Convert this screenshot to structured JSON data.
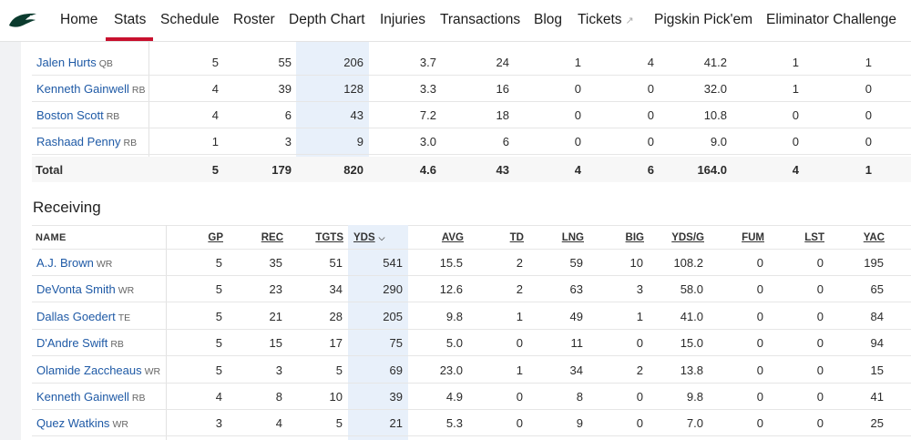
{
  "nav": {
    "items": [
      "Home",
      "Stats",
      "Schedule",
      "Roster",
      "Depth Chart",
      "Injuries",
      "Transactions",
      "Blog",
      "Tickets",
      "Pigskin Pick'em",
      "Eliminator Challenge"
    ],
    "active": "Stats",
    "accent": "#c8102e",
    "tickets_icon": "external-link-icon"
  },
  "rushing": {
    "rows": [
      {
        "name": "Jalen Hurts",
        "pos": "QB",
        "vals": [
          "5",
          "55",
          "206",
          "3.7",
          "24",
          "1",
          "4",
          "41.2",
          "1",
          "1"
        ]
      },
      {
        "name": "Kenneth Gainwell",
        "pos": "RB",
        "vals": [
          "4",
          "39",
          "128",
          "3.3",
          "16",
          "0",
          "0",
          "32.0",
          "1",
          "0"
        ]
      },
      {
        "name": "Boston Scott",
        "pos": "RB",
        "vals": [
          "4",
          "6",
          "43",
          "7.2",
          "18",
          "0",
          "0",
          "10.8",
          "0",
          "0"
        ]
      },
      {
        "name": "Rashaad Penny",
        "pos": "RB",
        "vals": [
          "1",
          "3",
          "9",
          "3.0",
          "6",
          "0",
          "0",
          "9.0",
          "0",
          "0"
        ]
      }
    ],
    "total": {
      "label": "Total",
      "vals": [
        "5",
        "179",
        "820",
        "4.6",
        "43",
        "4",
        "6",
        "164.0",
        "4",
        "1"
      ]
    }
  },
  "receiving": {
    "title": "Receiving",
    "name_header": "NAME",
    "headers": [
      "GP",
      "REC",
      "TGTS",
      "YDS",
      "AVG",
      "TD",
      "LNG",
      "BIG",
      "YDS/G",
      "FUM",
      "LST",
      "YAC"
    ],
    "sorted_by": "YDS",
    "sort_icon": "chevron-down-icon",
    "rows": [
      {
        "name": "A.J. Brown",
        "pos": "WR",
        "vals": [
          "5",
          "35",
          "51",
          "541",
          "15.5",
          "2",
          "59",
          "10",
          "108.2",
          "0",
          "0",
          "195"
        ]
      },
      {
        "name": "DeVonta Smith",
        "pos": "WR",
        "vals": [
          "5",
          "23",
          "34",
          "290",
          "12.6",
          "2",
          "63",
          "3",
          "58.0",
          "0",
          "0",
          "65"
        ]
      },
      {
        "name": "Dallas Goedert",
        "pos": "TE",
        "vals": [
          "5",
          "21",
          "28",
          "205",
          "9.8",
          "1",
          "49",
          "1",
          "41.0",
          "0",
          "0",
          "84"
        ]
      },
      {
        "name": "D'Andre Swift",
        "pos": "RB",
        "vals": [
          "5",
          "15",
          "17",
          "75",
          "5.0",
          "0",
          "11",
          "0",
          "15.0",
          "0",
          "0",
          "94"
        ]
      },
      {
        "name": "Olamide Zaccheaus",
        "pos": "WR",
        "vals": [
          "5",
          "3",
          "5",
          "69",
          "23.0",
          "1",
          "34",
          "2",
          "13.8",
          "0",
          "0",
          "15"
        ]
      },
      {
        "name": "Kenneth Gainwell",
        "pos": "RB",
        "vals": [
          "4",
          "8",
          "10",
          "39",
          "4.9",
          "0",
          "8",
          "0",
          "9.8",
          "0",
          "0",
          "41"
        ]
      },
      {
        "name": "Quez Watkins",
        "pos": "WR",
        "vals": [
          "3",
          "4",
          "5",
          "21",
          "5.3",
          "0",
          "9",
          "0",
          "7.0",
          "0",
          "0",
          "25"
        ]
      }
    ]
  }
}
